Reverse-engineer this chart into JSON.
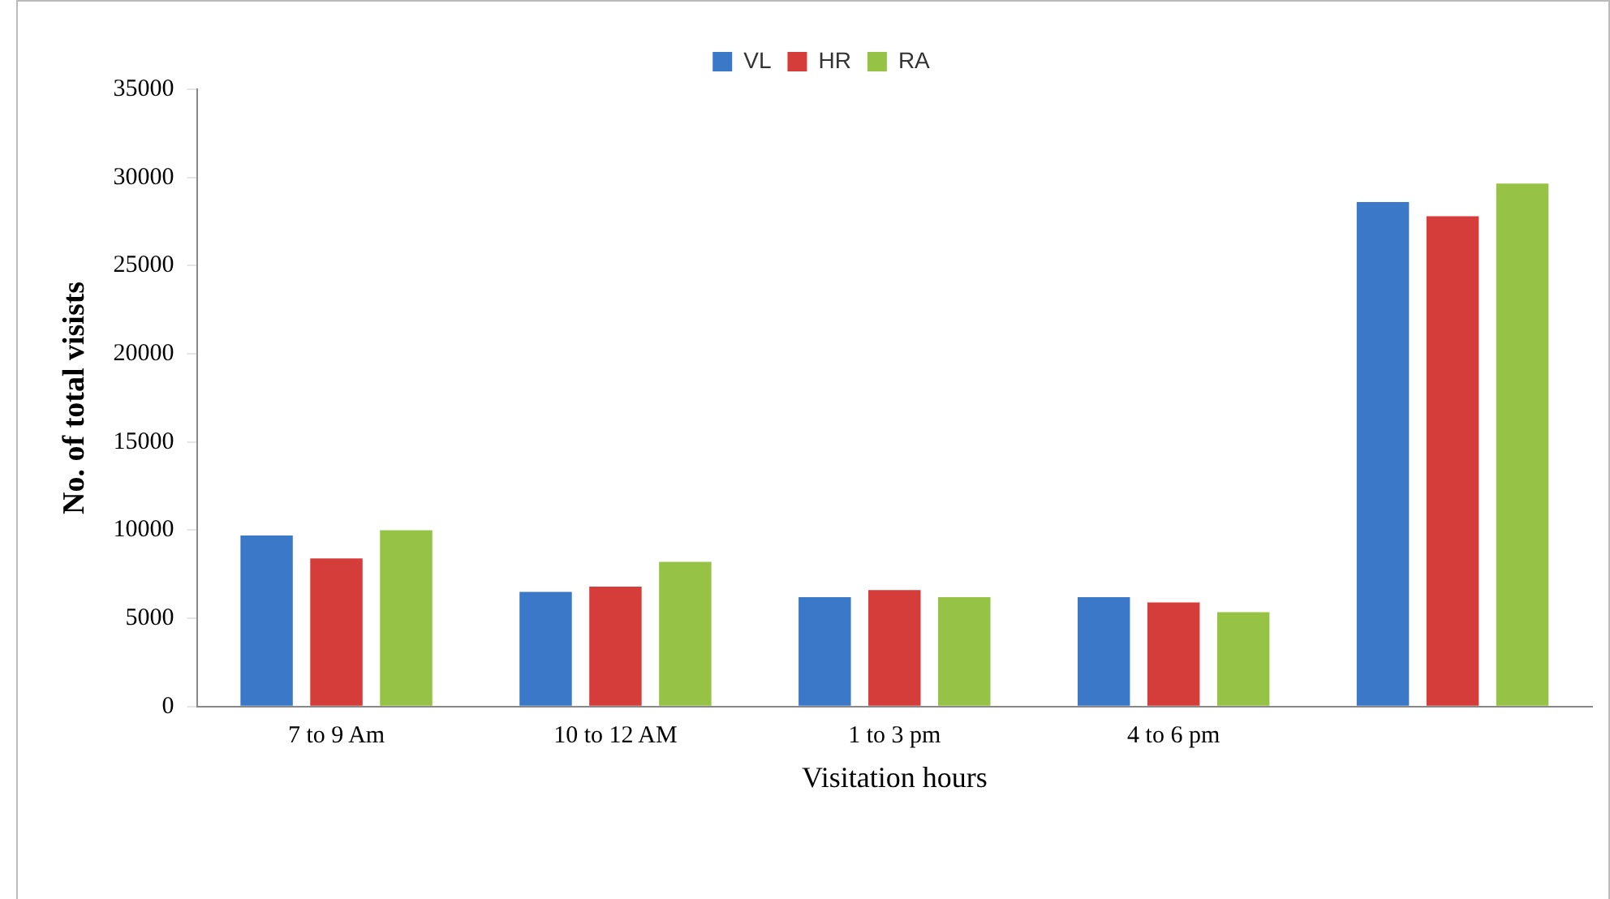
{
  "chart_data": {
    "type": "bar",
    "xlabel": "Visitation hours",
    "ylabel": "No. of total visists",
    "categories": [
      "7 to 9 Am",
      "10 to 12 AM",
      "1 to 3 pm",
      "4 to 6 pm",
      null
    ],
    "series": [
      {
        "name": "VL",
        "color": "#3c78c8",
        "values": [
          9700,
          6500,
          6200,
          6200,
          28600
        ]
      },
      {
        "name": "HR",
        "color": "#d43d3a",
        "values": [
          8400,
          6800,
          6600,
          5900,
          27800
        ]
      },
      {
        "name": "RA",
        "color": "#96c346",
        "values": [
          10000,
          8200,
          6200,
          5350,
          29650
        ]
      }
    ],
    "ylim": [
      0,
      35000
    ],
    "yticks": [
      0,
      5000,
      10000,
      15000,
      20000,
      25000,
      30000,
      35000
    ],
    "grid": false,
    "legend": "top"
  }
}
